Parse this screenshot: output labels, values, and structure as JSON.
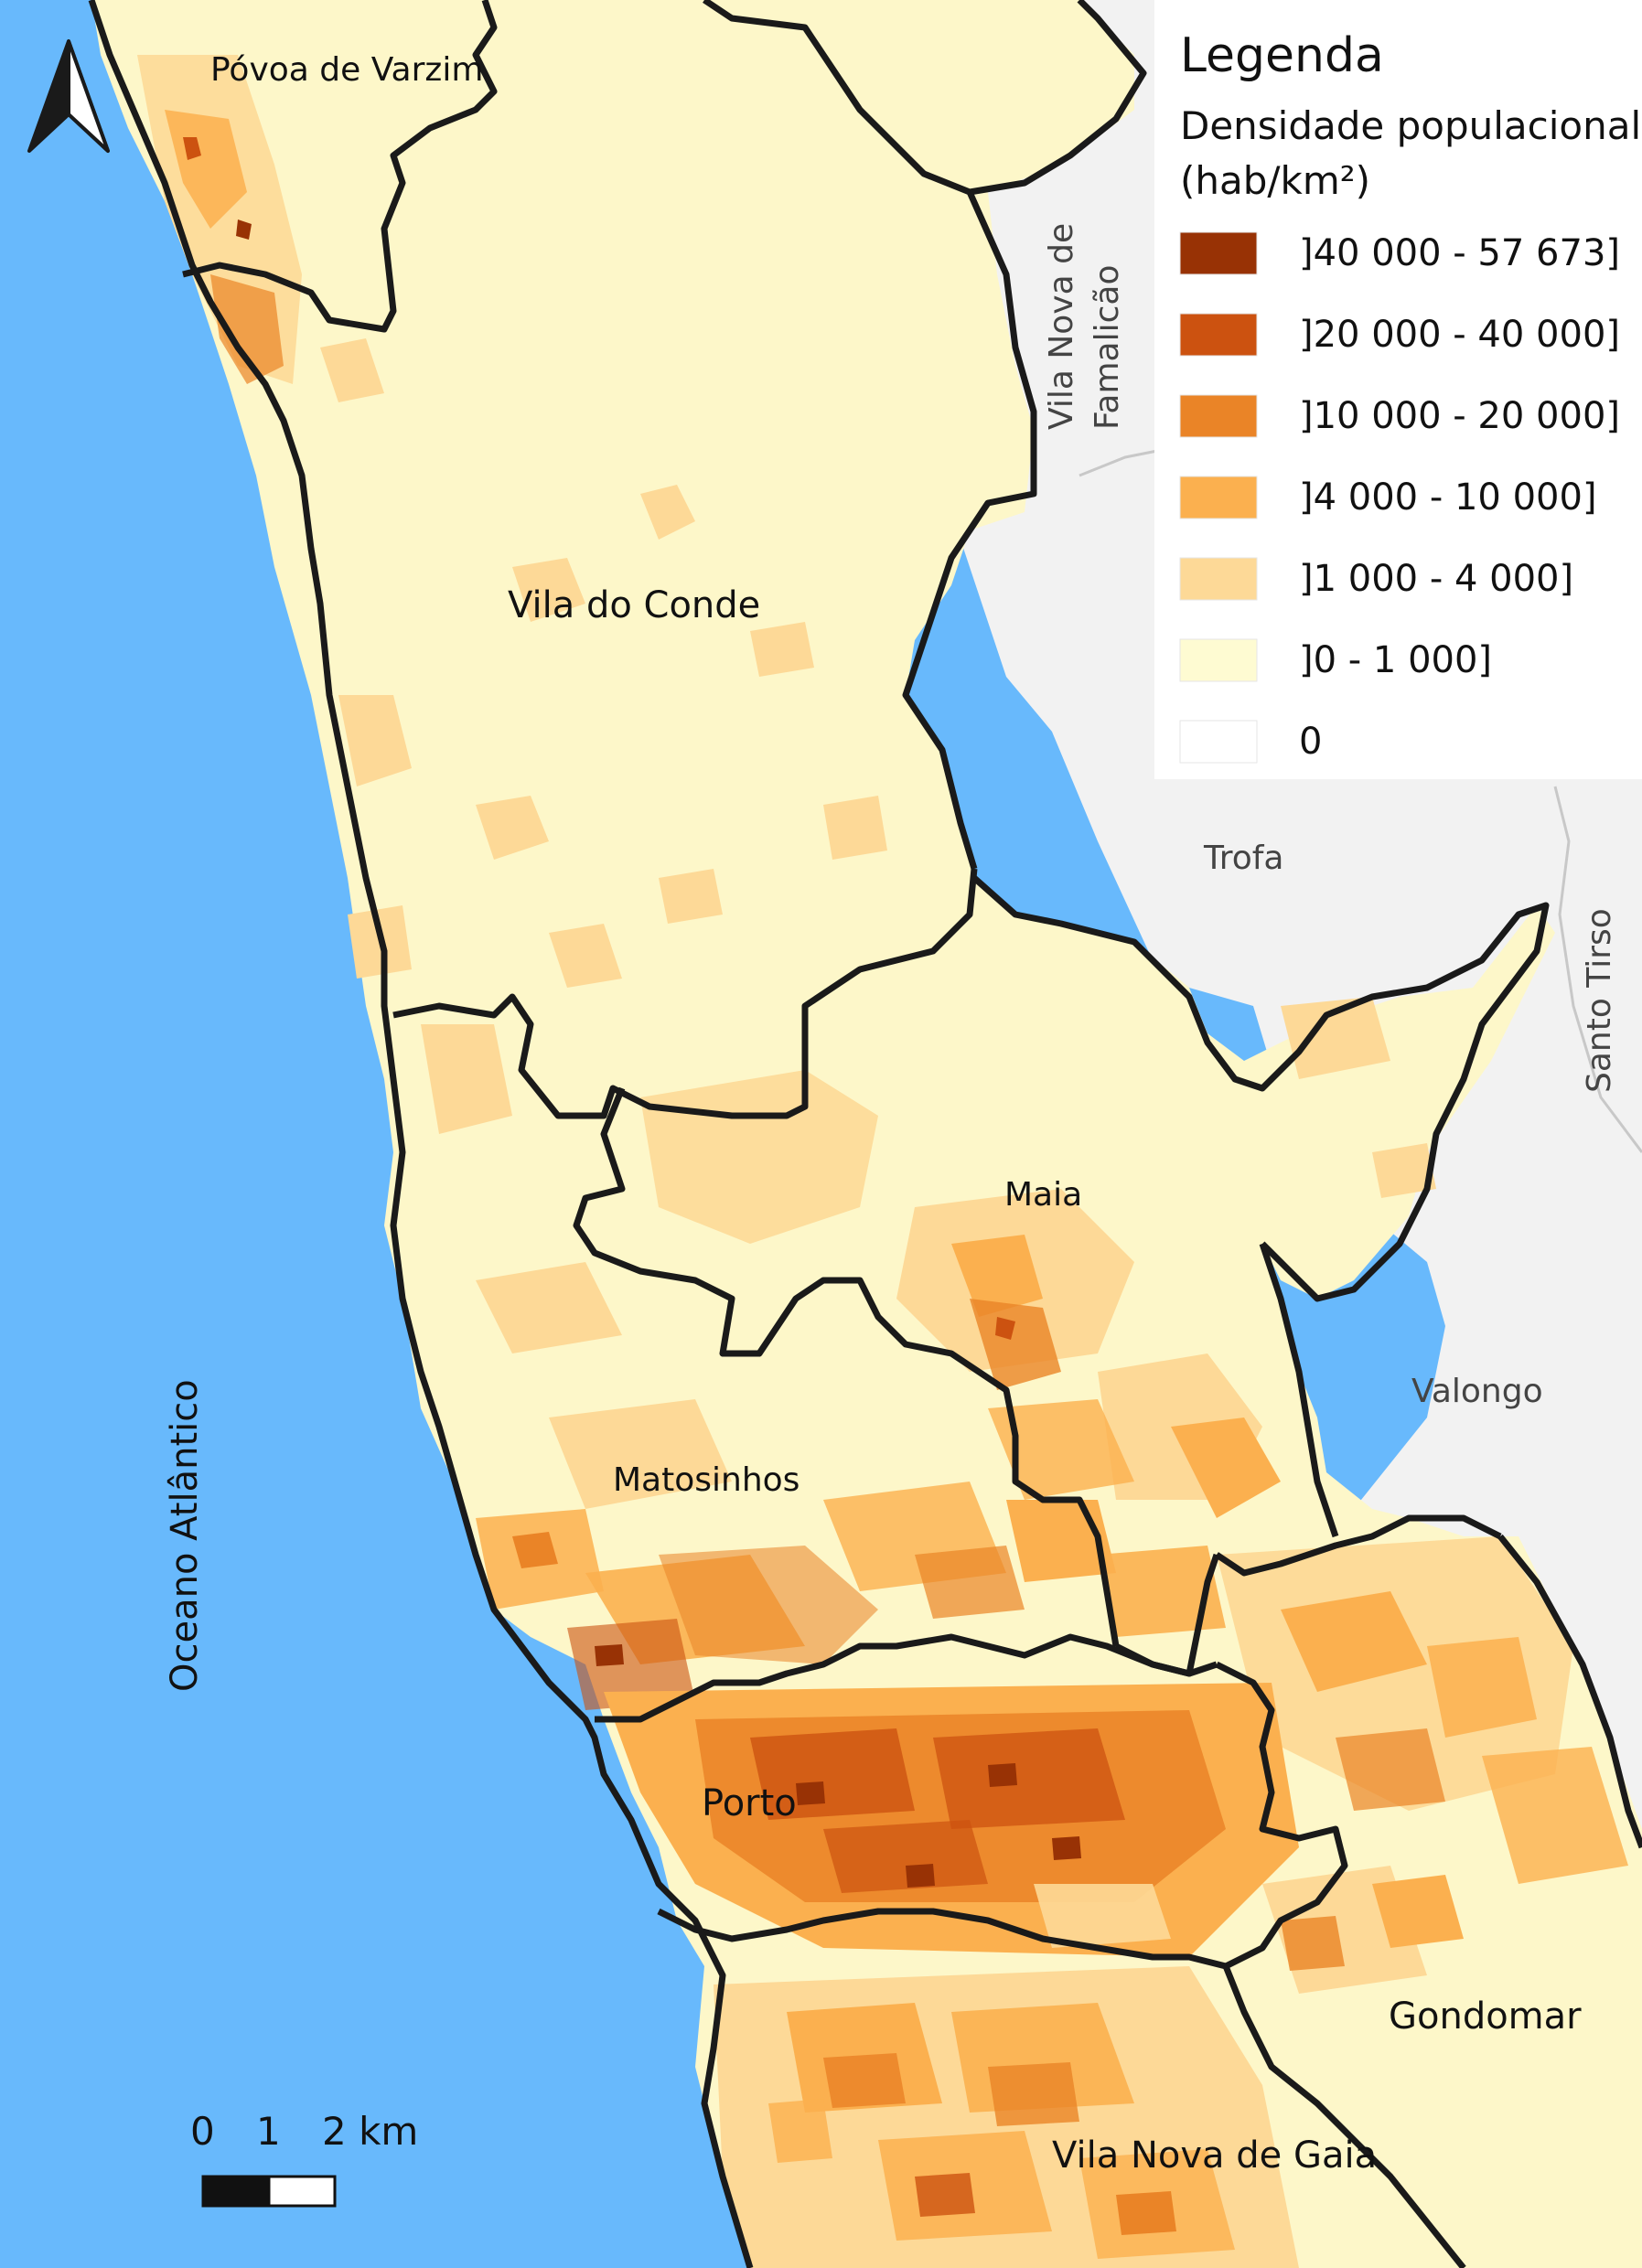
{
  "legend": {
    "title": "Legenda",
    "subtitle_line1": "Densidade populacional",
    "subtitle_line2": "(hab/km²)",
    "classes": [
      {
        "label": "]40 000 - 57 673]",
        "color": "#983205"
      },
      {
        "label": "]20 000 - 40 000]",
        "color": "#cc5210"
      },
      {
        "label": "]10 000 - 20 000]",
        "color": "#ea8427"
      },
      {
        "label": "]4 000 - 10 000]",
        "color": "#fbb04f"
      },
      {
        "label": "]1 000 - 4 000]",
        "color": "#fdd997"
      },
      {
        "label": "]0 - 1 000]",
        "color": "#fefbd2"
      },
      {
        "label": "0",
        "color": "#ffffff"
      }
    ]
  },
  "municipalities": {
    "povoa_de_varzim": "Póvoa de Varzim",
    "vila_do_conde": "Vila do Conde",
    "maia": "Maia",
    "matosinhos": "Matosinhos",
    "porto": "Porto",
    "gondomar": "Gondomar",
    "vila_nova_de_gaia": "Vila Nova de Gaia"
  },
  "neighbors": {
    "vn_famalicao_line1": "Vila Nova de",
    "vn_famalicao_line2": "Famalicão",
    "trofa": "Trofa",
    "santo_tirso": "Santo Tirso",
    "valongo": "Valongo"
  },
  "ocean": "Oceano Atlântico",
  "scale_bar": {
    "tick0": "0",
    "tick1": "1",
    "tick2": "2 km"
  },
  "colors": {
    "ocean": "#68b9fc",
    "outside_area": "#f2f2f2",
    "boundary": "#1a1a1a"
  }
}
